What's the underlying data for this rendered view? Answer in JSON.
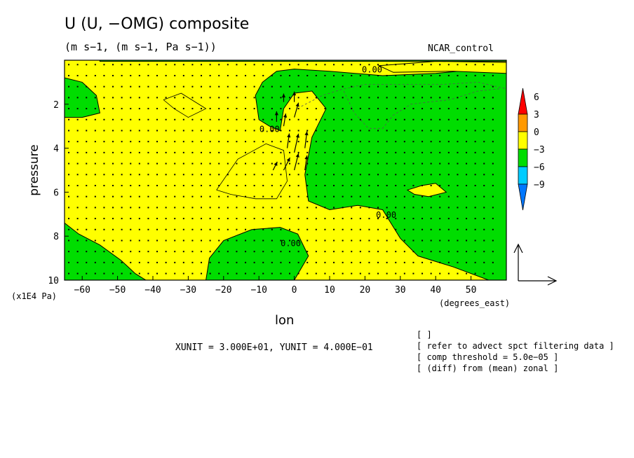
{
  "title": "U (U, −OMG) composite",
  "subtitle": "(m s−1, (m s−1, Pa s−1))",
  "run_label": "NCAR_control",
  "x_axis": {
    "title": "lon",
    "units": "(degrees_east)"
  },
  "y_axis": {
    "title": "pressure",
    "units": "(x1E4 Pa)"
  },
  "unit_note": "XUNIT = 3.000E+01, YUNIT = 4.000E−01",
  "notes": [
    "[  ]",
    "[ refer to advect spct filtering data ]",
    "[ comp threshold = 5.0e−05 ]",
    "[ (diff) from (mean) zonal ]"
  ],
  "colors": {
    "positive_fill": "#ffff00",
    "negative_fill": "#00dd00",
    "colorbar": [
      "#0077ff",
      "#00ccff",
      "#00dd00",
      "#ffff00",
      "#ff9900",
      "#ff0000"
    ]
  },
  "chart_data": {
    "type": "contour",
    "xlim": [
      -65,
      60
    ],
    "ylim": [
      10,
      0
    ],
    "x_ticks": [
      -60,
      -50,
      -40,
      -30,
      -20,
      -10,
      0,
      10,
      20,
      30,
      40,
      50
    ],
    "x_tick_labels": [
      "−60",
      "−50",
      "−40",
      "−30",
      "−20",
      "−10",
      "0",
      "10",
      "20",
      "30",
      "40",
      "50"
    ],
    "y_ticks": [
      2,
      4,
      6,
      8,
      10
    ],
    "y_tick_labels": [
      "2",
      "4",
      "6",
      "8",
      "10"
    ],
    "contour_labels": [
      {
        "text": "0.00",
        "x": 22,
        "y": 0.4
      },
      {
        "text": "0.00",
        "x": -7,
        "y": 3.1
      },
      {
        "text": "0.00",
        "x": 26,
        "y": 7.0
      },
      {
        "text": "0.00",
        "x": -1,
        "y": 8.3
      }
    ],
    "colorbar": {
      "levels": [
        "6",
        "3",
        "0",
        "−3",
        "−6",
        "−9"
      ]
    },
    "reference_vector": {
      "xunit": 30,
      "yunit": 0.4
    },
    "negative_regions": [
      [
        [
          -65,
          0.8
        ],
        [
          -60,
          1.0
        ],
        [
          -56,
          1.6
        ],
        [
          -55,
          2.4
        ],
        [
          -60,
          2.6
        ],
        [
          -65,
          2.6
        ]
      ],
      [
        [
          -65,
          7.4
        ],
        [
          -61,
          7.9
        ],
        [
          -55,
          8.4
        ],
        [
          -49,
          9.1
        ],
        [
          -45,
          9.7
        ],
        [
          -42,
          10
        ],
        [
          -65,
          10
        ]
      ],
      [
        [
          -25,
          10
        ],
        [
          -24,
          9.0
        ],
        [
          -20,
          8.2
        ],
        [
          -12,
          7.7
        ],
        [
          -4,
          7.6
        ],
        [
          1,
          7.9
        ],
        [
          4,
          8.9
        ],
        [
          0,
          10
        ]
      ],
      [
        [
          -5,
          0.5
        ],
        [
          0,
          0.4
        ],
        [
          10,
          0.5
        ],
        [
          25,
          0.7
        ],
        [
          40,
          0.6
        ],
        [
          60,
          0.3
        ],
        [
          60,
          10
        ],
        [
          55,
          10
        ],
        [
          45,
          9.4
        ],
        [
          35,
          8.9
        ],
        [
          30,
          8.1
        ],
        [
          25,
          6.8
        ],
        [
          18,
          6.6
        ],
        [
          10,
          6.8
        ],
        [
          4,
          6.4
        ],
        [
          3,
          5.2
        ],
        [
          5,
          3.5
        ],
        [
          9,
          2.2
        ],
        [
          5,
          1.4
        ],
        [
          0,
          1.5
        ],
        [
          -3,
          2.2
        ],
        [
          -4,
          3.2
        ],
        [
          -7,
          3.0
        ],
        [
          -10,
          2.7
        ],
        [
          -11,
          1.6
        ],
        [
          -9,
          1.0
        ],
        [
          -5,
          0.5
        ]
      ],
      [
        [
          -55,
          0
        ],
        [
          60,
          0
        ],
        [
          60,
          0.05
        ],
        [
          -55,
          0.05
        ]
      ]
    ],
    "positive_islands": [
      [
        [
          24,
          0.25
        ],
        [
          40,
          0.05
        ],
        [
          60,
          0.1
        ],
        [
          60,
          0.6
        ],
        [
          45,
          0.5
        ],
        [
          28,
          0.55
        ]
      ],
      [
        [
          32,
          5.9
        ],
        [
          36,
          5.7
        ],
        [
          40,
          5.6
        ],
        [
          43,
          6.0
        ],
        [
          38,
          6.2
        ],
        [
          34,
          6.1
        ]
      ]
    ],
    "dashed_contours": [
      [
        [
          2,
          2.1
        ],
        [
          8,
          1.6
        ],
        [
          14,
          1.3
        ],
        [
          20,
          1.1
        ],
        [
          30,
          1.1
        ],
        [
          42,
          1.1
        ],
        [
          52,
          1.0
        ],
        [
          60,
          1.3
        ]
      ],
      [
        [
          14,
          1.4
        ],
        [
          17,
          2.4
        ],
        [
          21,
          3.1
        ],
        [
          25,
          3.1
        ],
        [
          28,
          2.5
        ],
        [
          33,
          2.0
        ],
        [
          38,
          1.9
        ],
        [
          44,
          1.8
        ],
        [
          52,
          1.4
        ],
        [
          58,
          1.3
        ]
      ]
    ],
    "thin_contours": [
      [
        [
          -22,
          5.9
        ],
        [
          -16,
          4.5
        ],
        [
          -8,
          3.8
        ],
        [
          -3,
          4.1
        ],
        [
          -2,
          5.5
        ],
        [
          -5,
          6.3
        ],
        [
          -11,
          6.3
        ],
        [
          -18,
          6.1
        ],
        [
          -22,
          5.9
        ]
      ],
      [
        [
          -37,
          1.8
        ],
        [
          -32,
          1.5
        ],
        [
          -25,
          2.2
        ],
        [
          -30,
          2.6
        ],
        [
          -34,
          2.2
        ],
        [
          -37,
          1.8
        ]
      ]
    ],
    "vectors": [
      {
        "x": -5,
        "y": 2.8,
        "u": 0,
        "v": 0.25
      },
      {
        "x": -3,
        "y": 3.0,
        "u": 0.01,
        "v": 0.3
      },
      {
        "x": 0,
        "y": 2.6,
        "u": 0.02,
        "v": 0.35
      },
      {
        "x": -2,
        "y": 4.0,
        "u": 0.01,
        "v": 0.35
      },
      {
        "x": 0,
        "y": 4.2,
        "u": 0.02,
        "v": 0.45
      },
      {
        "x": 3,
        "y": 4.0,
        "u": 0.01,
        "v": 0.4
      },
      {
        "x": -3,
        "y": 5.0,
        "u": 0.03,
        "v": 0.3
      },
      {
        "x": 0,
        "y": 5.0,
        "u": 0.02,
        "v": 0.4
      },
      {
        "x": 3,
        "y": 5.0,
        "u": 0.01,
        "v": 0.35
      },
      {
        "x": -6,
        "y": 5.0,
        "u": 0.02,
        "v": 0.2
      },
      {
        "x": -3,
        "y": 1.9,
        "u": 0,
        "v": 0.2
      },
      {
        "x": 0,
        "y": 1.9,
        "u": 0,
        "v": 0.25
      }
    ]
  }
}
